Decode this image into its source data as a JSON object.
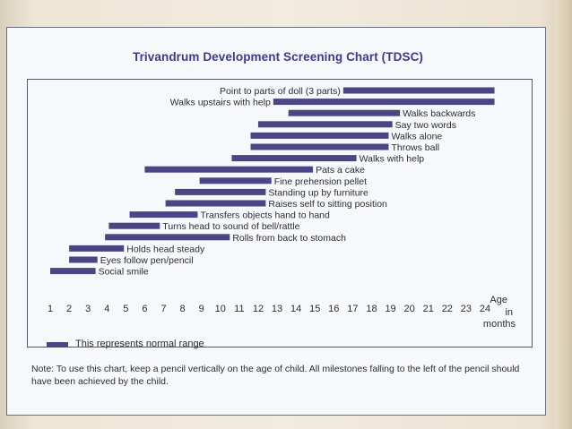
{
  "colors": {
    "bar": "#4a4683",
    "title": "#3a3a8c",
    "text": "#2b2b35"
  },
  "title": "Trivandrum Development Screening Chart (TDSC)",
  "legend_text": "This represents normal range",
  "note": "Note: To use this chart, keep a pencil vertically on the age of child. All milestones falling to the left of the pencil should have been achieved by the child.",
  "chart_data": {
    "type": "bar",
    "orientation": "horizontal-range",
    "title": "Trivandrum Development Screening Chart (TDSC)",
    "xlabel": "Age in months",
    "x_ticks": [
      "1",
      "2",
      "3",
      "4",
      "5",
      "6",
      "7",
      "8",
      "9",
      "10",
      "11",
      "12",
      "13",
      "14",
      "15",
      "16",
      "17",
      "18",
      "19",
      "20",
      "21",
      "22",
      "23",
      "24"
    ],
    "x_label_lines": [
      "Age",
      "in",
      "months"
    ],
    "xlim": [
      1,
      24
    ],
    "milestones": [
      {
        "label": "Point to parts of doll (3 parts)",
        "start": 16.5,
        "end": 24.5,
        "label_side": "left"
      },
      {
        "label": "Walks upstairs with help",
        "start": 12.8,
        "end": 24.5,
        "label_side": "left"
      },
      {
        "label": "Walks backwards",
        "start": 13.6,
        "end": 19.5,
        "label_side": "right"
      },
      {
        "label": "Say two words",
        "start": 12.0,
        "end": 19.1,
        "label_side": "right"
      },
      {
        "label": "Walks alone",
        "start": 11.6,
        "end": 18.9,
        "label_side": "right"
      },
      {
        "label": "Throws ball",
        "start": 11.6,
        "end": 18.9,
        "label_side": "right"
      },
      {
        "label": "Walks with help",
        "start": 10.6,
        "end": 17.2,
        "label_side": "right"
      },
      {
        "label": "Pats a cake",
        "start": 6.0,
        "end": 14.9,
        "label_side": "right"
      },
      {
        "label": "Fine prehension pellet",
        "start": 8.9,
        "end": 12.7,
        "label_side": "right"
      },
      {
        "label": "Standing up by furniture",
        "start": 7.6,
        "end": 12.4,
        "label_side": "right"
      },
      {
        "label": "Raises self to sitting position",
        "start": 7.1,
        "end": 12.4,
        "label_side": "right"
      },
      {
        "label": "Transfers objects hand to hand",
        "start": 5.2,
        "end": 8.8,
        "label_side": "right"
      },
      {
        "label": "Turns head to sound of bell/rattle",
        "start": 4.1,
        "end": 6.8,
        "label_side": "right"
      },
      {
        "label": "Rolls from back to stomach",
        "start": 3.9,
        "end": 10.5,
        "label_side": "right"
      },
      {
        "label": "Holds head steady",
        "start": 2.0,
        "end": 4.9,
        "label_side": "right"
      },
      {
        "label": "Eyes follow pen/pencil",
        "start": 2.0,
        "end": 3.5,
        "label_side": "right"
      },
      {
        "label": "Social smile",
        "start": 1.0,
        "end": 3.4,
        "label_side": "right"
      }
    ]
  }
}
